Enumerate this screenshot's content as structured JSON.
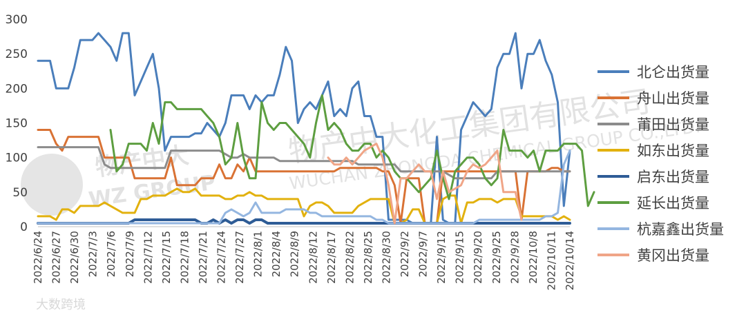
{
  "chart_data": {
    "type": "line",
    "ylim": [
      0,
      300
    ],
    "yticks": [
      0,
      50,
      100,
      150,
      200,
      250,
      300
    ],
    "grid": false,
    "legend_position": "right",
    "x_tick_labels": [
      "2022/6/24",
      "2022/6/27",
      "2022/6/30",
      "2022/7/3",
      "2022/7/6",
      "2022/7/9",
      "2022/7/12",
      "2022/7/15",
      "2022/7/18",
      "2022/7/21",
      "2022/7/24",
      "2022/7/27",
      "2022/8/1",
      "2022/8/4",
      "2022/8/9",
      "2022/8/12",
      "2022/8/17",
      "2022/8/22",
      "2022/8/25",
      "2022/8/30",
      "2022/9/2",
      "2022/9/7",
      "2022/9/12",
      "2022/9/15",
      "2022/9/20",
      "2022/9/25",
      "2022/9/28",
      "2022/10/8",
      "2022/10/11",
      "2022/10/14"
    ],
    "series": [
      {
        "name": "北仑出货量",
        "color": "#4a7ebb",
        "values": [
          240,
          240,
          240,
          200,
          200,
          200,
          230,
          270,
          270,
          270,
          280,
          270,
          260,
          240,
          280,
          280,
          190,
          210,
          230,
          250,
          200,
          110,
          130,
          130,
          130,
          130,
          135,
          135,
          150,
          140,
          130,
          150,
          190,
          190,
          190,
          170,
          190,
          180,
          190,
          190,
          220,
          260,
          240,
          150,
          170,
          180,
          170,
          190,
          210,
          160,
          170,
          160,
          200,
          210,
          160,
          160,
          130,
          130,
          10,
          10,
          10,
          10,
          5,
          5,
          5,
          5,
          130,
          10,
          5,
          5,
          140,
          160,
          180,
          170,
          160,
          170,
          230,
          250,
          250,
          280,
          200,
          250,
          250,
          270,
          240,
          220,
          180,
          30,
          110
        ]
      },
      {
        "name": "舟山出货量",
        "color": "#d97234",
        "values": [
          140,
          140,
          140,
          120,
          110,
          130,
          130,
          130,
          130,
          130,
          130,
          100,
          100,
          100,
          100,
          100,
          70,
          70,
          70,
          70,
          70,
          70,
          100,
          60,
          60,
          60,
          60,
          70,
          70,
          70,
          90,
          70,
          70,
          90,
          80,
          100,
          80,
          80,
          80,
          80,
          80,
          80,
          80,
          80,
          80,
          80,
          80,
          80,
          80,
          80,
          85,
          85,
          85,
          85,
          85,
          85,
          85,
          80,
          80,
          60,
          5,
          70,
          70,
          70,
          5,
          5,
          5,
          80,
          80,
          80,
          80,
          80,
          80,
          80,
          80,
          80,
          80,
          80,
          80,
          80,
          10,
          80,
          80,
          80,
          80,
          85,
          85,
          80,
          80
        ]
      },
      {
        "name": "莆田出货量",
        "color": "#8c8c8c",
        "values": [
          115,
          115,
          115,
          115,
          115,
          115,
          115,
          115,
          115,
          115,
          115,
          90,
          85,
          85,
          85,
          85,
          85,
          85,
          85,
          85,
          85,
          85,
          110,
          110,
          110,
          110,
          110,
          110,
          110,
          110,
          110,
          105,
          100,
          100,
          105,
          100,
          100,
          100,
          100,
          100,
          95,
          95,
          95,
          95,
          95,
          95,
          95,
          95,
          95,
          95,
          95,
          95,
          95,
          90,
          90,
          90,
          90,
          90,
          90,
          90,
          80,
          80,
          80,
          80,
          80,
          80,
          80,
          80,
          75,
          70,
          70,
          70,
          70,
          70,
          70,
          70,
          80,
          80,
          80,
          80,
          80,
          80,
          80,
          80,
          80,
          80,
          80,
          80,
          80
        ]
      },
      {
        "name": "如东出货量",
        "color": "#e2b10e",
        "values": [
          15,
          15,
          15,
          10,
          25,
          25,
          20,
          30,
          30,
          30,
          30,
          35,
          30,
          25,
          20,
          20,
          20,
          40,
          40,
          45,
          45,
          45,
          50,
          55,
          50,
          50,
          55,
          45,
          45,
          45,
          45,
          40,
          40,
          45,
          45,
          50,
          45,
          45,
          40,
          40,
          40,
          40,
          40,
          40,
          15,
          30,
          35,
          35,
          30,
          20,
          20,
          20,
          20,
          30,
          35,
          40,
          40,
          40,
          40,
          5,
          5,
          10,
          25,
          25,
          5,
          5,
          5,
          40,
          45,
          45,
          5,
          35,
          35,
          40,
          40,
          40,
          35,
          40,
          40,
          40,
          15,
          15,
          15,
          15,
          15,
          15,
          10,
          15,
          10
        ]
      },
      {
        "name": "启东出货量",
        "color": "#2e5c96",
        "values": [
          5,
          5,
          5,
          5,
          5,
          5,
          5,
          5,
          5,
          5,
          5,
          5,
          5,
          5,
          5,
          5,
          10,
          10,
          10,
          10,
          10,
          10,
          10,
          10,
          10,
          10,
          10,
          5,
          5,
          10,
          5,
          10,
          5,
          10,
          10,
          5,
          10,
          10,
          5,
          5,
          5,
          5,
          5,
          5,
          5,
          5,
          5,
          5,
          5,
          5,
          5,
          5,
          5,
          5,
          5,
          5,
          5,
          5,
          5,
          5,
          5,
          5,
          5,
          5,
          5,
          5,
          5,
          5,
          5,
          5,
          5,
          5,
          5,
          5,
          5,
          5,
          5,
          5,
          5,
          5,
          5,
          5,
          5,
          5,
          5,
          5,
          5,
          5,
          5
        ]
      },
      {
        "name": "延长出货量",
        "color": "#5d9e40",
        "values": [
          null,
          null,
          null,
          null,
          null,
          null,
          null,
          null,
          null,
          null,
          null,
          null,
          140,
          80,
          90,
          120,
          120,
          120,
          110,
          150,
          120,
          180,
          180,
          170,
          170,
          170,
          170,
          170,
          160,
          150,
          130,
          90,
          100,
          150,
          100,
          70,
          70,
          180,
          150,
          140,
          150,
          150,
          140,
          130,
          120,
          100,
          150,
          190,
          140,
          150,
          140,
          120,
          110,
          110,
          120,
          120,
          100,
          110,
          100,
          80,
          70,
          70,
          60,
          50,
          60,
          70,
          110,
          70,
          40,
          80,
          90,
          100,
          100,
          90,
          70,
          60,
          70,
          140,
          110,
          110,
          110,
          100,
          110,
          80,
          110,
          110,
          110,
          120,
          120,
          120,
          110,
          30,
          50
        ]
      },
      {
        "name": "杭嘉鑫出货量",
        "color": "#94b6e0",
        "values": [
          5,
          5,
          5,
          5,
          5,
          5,
          5,
          5,
          5,
          5,
          5,
          5,
          5,
          5,
          5,
          5,
          5,
          5,
          5,
          5,
          5,
          5,
          5,
          5,
          5,
          5,
          5,
          5,
          5,
          5,
          5,
          20,
          25,
          20,
          15,
          20,
          35,
          20,
          20,
          20,
          20,
          25,
          25,
          25,
          25,
          20,
          20,
          15,
          15,
          15,
          15,
          15,
          15,
          15,
          15,
          15,
          10,
          10,
          5,
          5,
          5,
          5,
          5,
          5,
          5,
          5,
          5,
          5,
          5,
          5,
          5,
          5,
          5,
          10,
          10,
          10,
          10,
          10,
          10,
          10,
          10,
          10,
          10,
          10,
          15,
          15,
          20,
          90,
          110
        ]
      },
      {
        "name": "黄冈出货量",
        "color": "#f0a587",
        "values": [
          null,
          null,
          null,
          null,
          null,
          null,
          null,
          null,
          null,
          null,
          null,
          null,
          null,
          null,
          null,
          null,
          null,
          null,
          null,
          null,
          null,
          null,
          null,
          null,
          null,
          null,
          null,
          null,
          null,
          null,
          null,
          null,
          null,
          null,
          null,
          null,
          null,
          null,
          null,
          null,
          null,
          null,
          null,
          null,
          null,
          null,
          null,
          null,
          100,
          90,
          90,
          100,
          90,
          100,
          110,
          115,
          120,
          100,
          60,
          5,
          70,
          70,
          80,
          90,
          80,
          80,
          40,
          80,
          50,
          55,
          60,
          80,
          90,
          85,
          90,
          100,
          110,
          50,
          50,
          50,
          10,
          null,
          null,
          null,
          null,
          null,
          null,
          null,
          null
        ]
      }
    ]
  },
  "watermark": {
    "cn": "物产中大化工集团有限公司",
    "en": "WUCHAN ZHONGDA CHEMICAL GROUP CO.,LTD.",
    "logo_cn": "物产中大",
    "logo_en": "WZ GROUP",
    "source": "大数跨境"
  }
}
